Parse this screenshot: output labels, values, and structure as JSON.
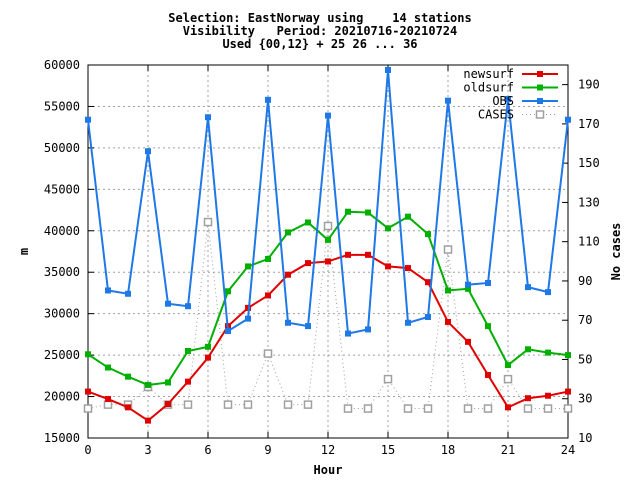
{
  "chart_data": {
    "type": "line",
    "title_lines": [
      "Selection: EastNorway using    14 stations",
      "Visibility   Period: 20210716-20210724",
      "Used {00,12} + 25 26 ... 36"
    ],
    "xlabel": "Hour",
    "ylabel": "m",
    "y2label": "No cases",
    "xlim": [
      0,
      24
    ],
    "ylim": [
      15000,
      60000
    ],
    "y2lim": [
      10,
      200
    ],
    "xticks": [
      0,
      3,
      6,
      9,
      12,
      15,
      18,
      21,
      24
    ],
    "yticks": [
      15000,
      20000,
      25000,
      30000,
      35000,
      40000,
      45000,
      50000,
      55000,
      60000
    ],
    "y2ticks": [
      10,
      30,
      50,
      70,
      90,
      110,
      130,
      150,
      170,
      190
    ],
    "grid": true,
    "legend_position": "top-right",
    "x": [
      0,
      1,
      2,
      3,
      4,
      5,
      6,
      7,
      8,
      9,
      10,
      11,
      12,
      13,
      14,
      15,
      16,
      17,
      18,
      19,
      20,
      21,
      22,
      23,
      24
    ],
    "series": [
      {
        "name": "newsurf",
        "axis": "y",
        "color": "#e00000",
        "marker": "square-filled",
        "line": "solid",
        "values": [
          20600,
          19700,
          18700,
          17100,
          19100,
          21800,
          24700,
          28500,
          30700,
          32200,
          34700,
          36100,
          36300,
          37100,
          37100,
          35700,
          35500,
          33800,
          29000,
          26600,
          22600,
          18700,
          19800,
          20100,
          20600
        ]
      },
      {
        "name": "oldsurf",
        "axis": "y",
        "color": "#00b000",
        "marker": "square-filled",
        "line": "solid",
        "values": [
          25100,
          23500,
          22400,
          21400,
          21700,
          25500,
          26000,
          32700,
          35700,
          36600,
          39800,
          41000,
          38900,
          42300,
          42200,
          40300,
          41700,
          39600,
          32800,
          33000,
          28500,
          23800,
          25700,
          25300,
          25000
        ]
      },
      {
        "name": "OBS",
        "axis": "y",
        "color": "#1e78e6",
        "marker": "square-filled",
        "line": "solid",
        "values": [
          53400,
          32800,
          32400,
          49600,
          31200,
          30900,
          53700,
          27900,
          29400,
          55800,
          28900,
          28500,
          53900,
          27600,
          28100,
          59400,
          28900,
          29600,
          55700,
          33500,
          33700,
          55900,
          33200,
          32600,
          53400
        ]
      },
      {
        "name": "CASES",
        "axis": "y2",
        "color": "#a0a0a0",
        "marker": "square-open",
        "line": "dotted",
        "values": [
          25,
          27,
          27,
          36,
          27,
          27,
          120,
          27,
          27,
          53,
          27,
          27,
          118,
          25,
          25,
          40,
          25,
          25,
          106,
          25,
          25,
          40,
          25,
          25,
          25
        ]
      }
    ]
  }
}
